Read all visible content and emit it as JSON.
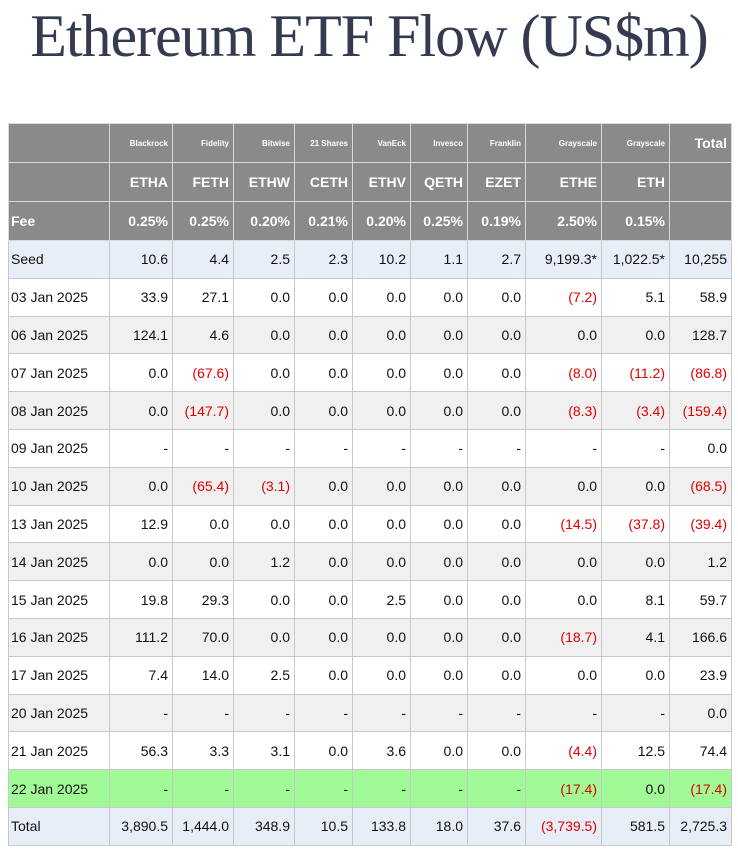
{
  "header": {
    "title": "Ethereum ETF Flow (US$m)"
  },
  "table": {
    "fee_label": "Fee",
    "total_label": "Total",
    "issuers": [
      "Blackrock",
      "Fidelity",
      "Bitwise",
      "21 Shares",
      "VanEck",
      "Invesco",
      "Franklin",
      "Grayscale",
      "Grayscale"
    ],
    "tickers": [
      "ETHA",
      "FETH",
      "ETHW",
      "CETH",
      "ETHV",
      "QETH",
      "EZET",
      "ETHE",
      "ETH"
    ],
    "fees": [
      "0.25%",
      "0.25%",
      "0.20%",
      "0.21%",
      "0.20%",
      "0.25%",
      "0.19%",
      "2.50%",
      "0.15%"
    ],
    "rows": [
      {
        "label": "Seed",
        "cells": [
          "10.6",
          "4.4",
          "2.5",
          "2.3",
          "10.2",
          "1.1",
          "2.7",
          "9,199.3*",
          "1,022.5*",
          "10,255"
        ]
      },
      {
        "label": "03 Jan 2025",
        "cells": [
          "33.9",
          "27.1",
          "0.0",
          "0.0",
          "0.0",
          "0.0",
          "0.0",
          "(7.2)",
          "5.1",
          "58.9"
        ]
      },
      {
        "label": "06 Jan 2025",
        "cells": [
          "124.1",
          "4.6",
          "0.0",
          "0.0",
          "0.0",
          "0.0",
          "0.0",
          "0.0",
          "0.0",
          "128.7"
        ]
      },
      {
        "label": "07 Jan 2025",
        "cells": [
          "0.0",
          "(67.6)",
          "0.0",
          "0.0",
          "0.0",
          "0.0",
          "0.0",
          "(8.0)",
          "(11.2)",
          "(86.8)"
        ]
      },
      {
        "label": "08 Jan 2025",
        "cells": [
          "0.0",
          "(147.7)",
          "0.0",
          "0.0",
          "0.0",
          "0.0",
          "0.0",
          "(8.3)",
          "(3.4)",
          "(159.4)"
        ]
      },
      {
        "label": "09 Jan 2025",
        "cells": [
          "-",
          "-",
          "-",
          "-",
          "-",
          "-",
          "-",
          "-",
          "-",
          "0.0"
        ]
      },
      {
        "label": "10 Jan 2025",
        "cells": [
          "0.0",
          "(65.4)",
          "(3.1)",
          "0.0",
          "0.0",
          "0.0",
          "0.0",
          "0.0",
          "0.0",
          "(68.5)"
        ]
      },
      {
        "label": "13 Jan 2025",
        "cells": [
          "12.9",
          "0.0",
          "0.0",
          "0.0",
          "0.0",
          "0.0",
          "0.0",
          "(14.5)",
          "(37.8)",
          "(39.4)"
        ]
      },
      {
        "label": "14 Jan 2025",
        "cells": [
          "0.0",
          "0.0",
          "1.2",
          "0.0",
          "0.0",
          "0.0",
          "0.0",
          "0.0",
          "0.0",
          "1.2"
        ]
      },
      {
        "label": "15 Jan 2025",
        "cells": [
          "19.8",
          "29.3",
          "0.0",
          "0.0",
          "2.5",
          "0.0",
          "0.0",
          "0.0",
          "8.1",
          "59.7"
        ]
      },
      {
        "label": "16 Jan 2025",
        "cells": [
          "111.2",
          "70.0",
          "0.0",
          "0.0",
          "0.0",
          "0.0",
          "0.0",
          "(18.7)",
          "4.1",
          "166.6"
        ]
      },
      {
        "label": "17 Jan 2025",
        "cells": [
          "7.4",
          "14.0",
          "2.5",
          "0.0",
          "0.0",
          "0.0",
          "0.0",
          "0.0",
          "0.0",
          "23.9"
        ]
      },
      {
        "label": "20 Jan 2025",
        "cells": [
          "-",
          "-",
          "-",
          "-",
          "-",
          "-",
          "-",
          "-",
          "-",
          "0.0"
        ]
      },
      {
        "label": "21 Jan 2025",
        "cells": [
          "56.3",
          "3.3",
          "3.1",
          "0.0",
          "3.6",
          "0.0",
          "0.0",
          "(4.4)",
          "12.5",
          "74.4"
        ]
      },
      {
        "label": "22 Jan 2025",
        "cells": [
          "-",
          "-",
          "-",
          "-",
          "-",
          "-",
          "-",
          "(17.4)",
          "0.0",
          "(17.4)"
        ]
      },
      {
        "label": "Total",
        "cells": [
          "3,890.5",
          "1,444.0",
          "348.9",
          "10.5",
          "133.8",
          "18.0",
          "37.6",
          "(3,739.5)",
          "581.5",
          "2,725.3"
        ]
      }
    ]
  }
}
